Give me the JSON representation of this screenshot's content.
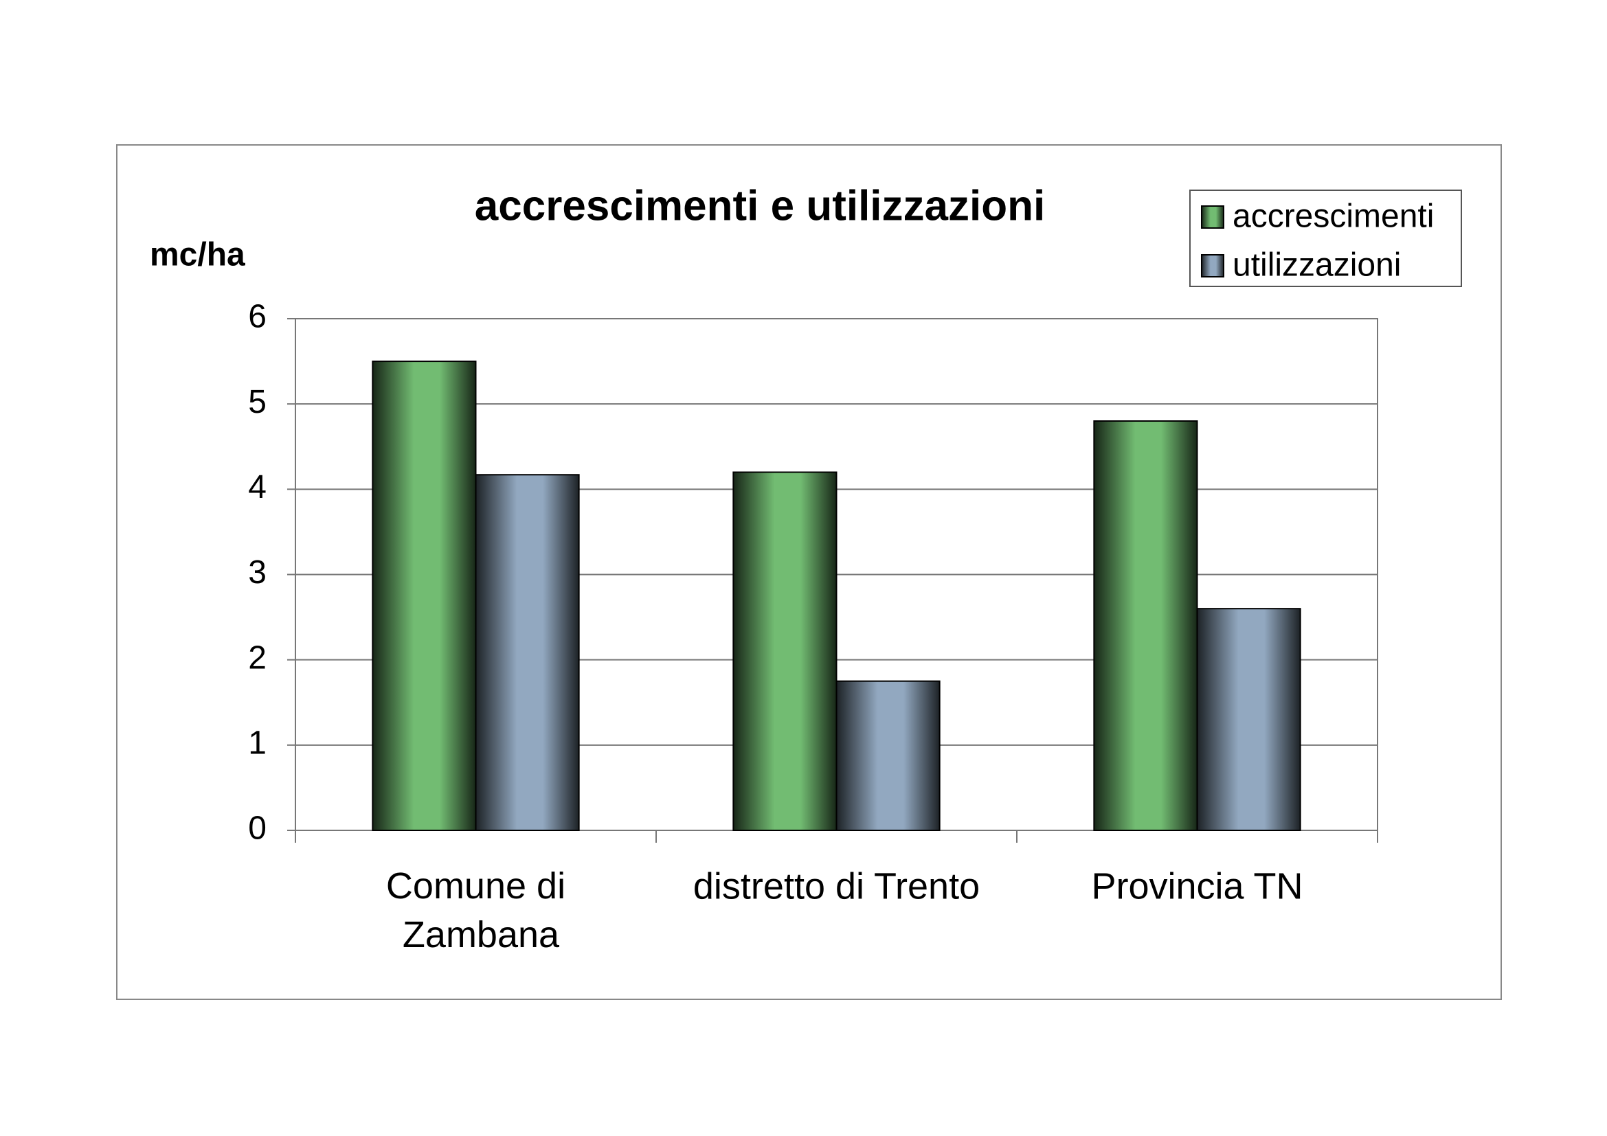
{
  "chart_data": {
    "type": "bar",
    "title": "accrescimenti e utilizzazioni",
    "y_label": "mc/ha",
    "categories": [
      "Comune di\nZambana",
      "distretto di Trento",
      "Provincia TN"
    ],
    "series": [
      {
        "name": "accrescimenti",
        "color": "#72bc72",
        "values": [
          5.5,
          4.2,
          4.8
        ]
      },
      {
        "name": "utilizzazioni",
        "color": "#92a8c0",
        "values": [
          4.17,
          1.75,
          2.6
        ]
      }
    ],
    "ylim": [
      0,
      6
    ],
    "yticks": [
      0,
      1,
      2,
      3,
      4,
      5,
      6
    ],
    "grid": true,
    "legend": "top-right"
  }
}
